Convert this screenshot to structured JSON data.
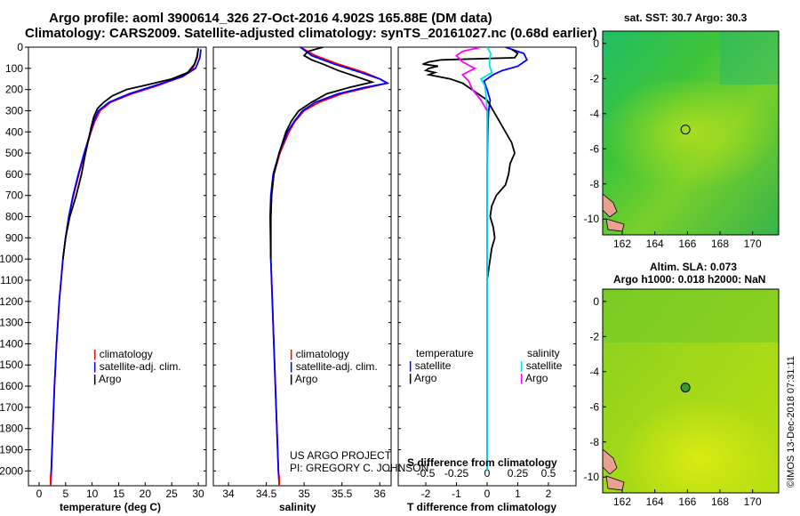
{
  "header": {
    "line1": "Argo profile: aoml 3900614_326 27-Oct-2016 4.902S 165.88E (DM data)",
    "line2": "Climatology: CARS2009. Satellite-adjusted climatology: synTS_20161027.nc (0.68d earlier)"
  },
  "colors": {
    "climatology": "#ff0000",
    "satellite": "#0000ff",
    "argo": "#000000",
    "sal_satellite": "#00e0e0",
    "sal_argo": "#ff00ff"
  },
  "depth_axis": {
    "ticks": [
      0,
      100,
      200,
      300,
      400,
      500,
      600,
      700,
      800,
      900,
      1000,
      1100,
      1200,
      1300,
      1400,
      1500,
      1600,
      1700,
      1800,
      1900,
      2000
    ]
  },
  "legend_t": {
    "climatology": "climatology",
    "satellite": "satellite-adj. clim.",
    "argo": "Argo"
  },
  "legend_s": {
    "climatology": "climatology",
    "satellite": "satellite-adj. clim.",
    "argo": "Argo"
  },
  "legend_diff": {
    "temperature": "temperature",
    "salinity": "salinity",
    "t_satellite": "satellite",
    "t_argo": "Argo",
    "s_satellite": "satellite",
    "s_argo": "Argo"
  },
  "credits": {
    "project": "US ARGO PROJECT",
    "pi": "PI: GREGORY C. JOHNSON"
  },
  "sst_map": {
    "title": "sat. SST: 30.7 Argo: 30.3"
  },
  "sla_map": {
    "title_line1": "Altim. SLA: 0.073",
    "title_line2": "Argo h1000: 0.018 h2000: NaN"
  },
  "stamp": "©IMOS 13-Dec-2018 07:31:11",
  "chart_data": [
    {
      "type": "line",
      "xlabel": "temperature (deg C)",
      "ylabel": "",
      "xlim": [
        -2,
        31.5
      ],
      "ylim": [
        2070,
        0
      ],
      "x_ticks": [
        0,
        5,
        10,
        15,
        20,
        25,
        30
      ],
      "series": [
        {
          "name": "climatology",
          "depth": [
            10,
            50,
            100,
            140,
            180,
            220,
            260,
            300,
            350,
            400,
            500,
            600,
            700,
            800,
            900,
            1000,
            1200,
            1400,
            1600,
            1800,
            2000,
            2060
          ],
          "values": [
            30.0,
            29.8,
            29.0,
            26.8,
            22.5,
            17.5,
            13.5,
            11.5,
            10.5,
            9.8,
            8.6,
            7.5,
            6.5,
            5.6,
            5.0,
            4.5,
            3.8,
            3.3,
            2.9,
            2.6,
            2.3,
            2.2
          ]
        },
        {
          "name": "satellite-adj. clim.",
          "depth": [
            10,
            50,
            100,
            140,
            180,
            220,
            260,
            300,
            350,
            400,
            500,
            600,
            700,
            800,
            900,
            1000,
            1200,
            1400,
            1600,
            1800,
            2000,
            2060
          ],
          "values": [
            30.5,
            30.3,
            29.5,
            27.0,
            22.0,
            17.0,
            13.2,
            11.2,
            10.3,
            9.7,
            8.5,
            7.4,
            6.4,
            5.6,
            5.0,
            4.5,
            3.8,
            3.3,
            2.9,
            2.6,
            2.3,
            2.2
          ]
        },
        {
          "name": "Argo",
          "depth": [
            5,
            40,
            80,
            120,
            150,
            180,
            200,
            230,
            260,
            290,
            330,
            380,
            450,
            520,
            600,
            700,
            800,
            900,
            1000
          ],
          "values": [
            30.0,
            29.8,
            29.3,
            28.0,
            25.0,
            20.0,
            16.5,
            13.8,
            12.2,
            11.0,
            10.3,
            9.8,
            9.2,
            8.6,
            8.0,
            7.0,
            5.8,
            5.0,
            4.5
          ]
        }
      ]
    },
    {
      "type": "line",
      "xlabel": "salinity",
      "ylabel": "",
      "xlim": [
        33.8,
        36.15
      ],
      "ylim": [
        2070,
        0
      ],
      "x_ticks": [
        34,
        34.5,
        35,
        35.5,
        36
      ],
      "series": [
        {
          "name": "climatology",
          "depth": [
            0,
            40,
            80,
            120,
            150,
            170,
            190,
            220,
            260,
            300,
            350,
            400,
            500,
            600,
            700,
            800,
            1000,
            1200,
            1400,
            1600,
            1800,
            2000,
            2060
          ],
          "values": [
            34.95,
            35.15,
            35.45,
            35.8,
            36.0,
            36.1,
            35.85,
            35.5,
            35.2,
            35.0,
            34.88,
            34.8,
            34.68,
            34.6,
            34.57,
            34.56,
            34.56,
            34.58,
            34.6,
            34.62,
            34.64,
            34.66,
            34.67
          ]
        },
        {
          "name": "satellite-adj. clim.",
          "depth": [
            0,
            40,
            80,
            120,
            150,
            170,
            190,
            220,
            260,
            300,
            350,
            400,
            500,
            600,
            700,
            800,
            1000,
            1200,
            1400,
            1600,
            1800,
            2000,
            2060
          ],
          "values": [
            34.95,
            35.1,
            35.4,
            35.75,
            36.0,
            36.1,
            35.8,
            35.45,
            35.15,
            34.98,
            34.87,
            34.78,
            34.67,
            34.59,
            34.56,
            34.55,
            34.56,
            34.58,
            34.6,
            34.62,
            34.64,
            34.66,
            34.67
          ]
        },
        {
          "name": "Argo",
          "depth": [
            0,
            20,
            40,
            60,
            80,
            110,
            140,
            165,
            190,
            220,
            260,
            300,
            350,
            400,
            500,
            600,
            700,
            800,
            900,
            1000
          ],
          "values": [
            35.25,
            35.05,
            35.0,
            35.1,
            35.25,
            35.45,
            35.7,
            35.9,
            35.6,
            35.3,
            35.1,
            34.93,
            34.83,
            34.76,
            34.67,
            34.6,
            34.57,
            34.56,
            34.56,
            34.56
          ]
        }
      ]
    },
    {
      "type": "line",
      "xlabel": "T difference from climatology",
      "x2label": "S difference from climatology",
      "ylabel": "",
      "xlim": [
        -2.9,
        2.9
      ],
      "ylim": [
        2070,
        0
      ],
      "x_ticks": [
        -2,
        -1,
        0,
        1,
        2
      ],
      "x2_ticks": [
        -0.5,
        -0.25,
        0,
        0.25,
        0.5
      ],
      "series": [
        {
          "name": "temperature satellite",
          "depth": [
            0,
            30,
            60,
            90,
            110,
            130,
            160,
            200,
            250,
            300,
            400,
            600,
            800,
            1000,
            1200,
            1400,
            1600,
            1800,
            2000
          ],
          "values": [
            0.6,
            1.2,
            1.3,
            1.0,
            0.5,
            0.2,
            -0.1,
            0.0,
            0.1,
            0.05,
            0.02,
            0.0,
            0.0,
            0.0,
            0.0,
            0.0,
            0.0,
            0.0,
            0.0
          ]
        },
        {
          "name": "temperature Argo",
          "depth": [
            10,
            30,
            50,
            60,
            70,
            80,
            90,
            100,
            110,
            120,
            130,
            150,
            170,
            200,
            250,
            300,
            350,
            400,
            450,
            500,
            550,
            600,
            650,
            700,
            750,
            800,
            850,
            900,
            950,
            1000,
            1050,
            1100
          ],
          "values": [
            0.8,
            1.0,
            0.9,
            -1.5,
            -1.9,
            -2.1,
            -1.6,
            -1.9,
            -2.0,
            -1.7,
            -1.9,
            -1.2,
            -0.8,
            -0.5,
            0.0,
            0.2,
            0.4,
            0.6,
            0.8,
            0.9,
            0.75,
            0.7,
            0.6,
            0.3,
            0.15,
            0.1,
            0.2,
            0.25,
            0.15,
            0.1,
            0.05,
            0.0
          ]
        },
        {
          "name": "salinity satellite",
          "depth": [
            0,
            30,
            60,
            90,
            120,
            150,
            180,
            220,
            300,
            400,
            600,
            1000,
            1500,
            2000
          ],
          "values": [
            0.0,
            0.03,
            0.02,
            0.02,
            0.04,
            -0.05,
            -0.02,
            -0.01,
            0.0,
            0.0,
            0.0,
            0.0,
            0.0,
            0.0
          ]
        },
        {
          "name": "salinity Argo",
          "depth": [
            0,
            20,
            40,
            70,
            100,
            130,
            160,
            200,
            250,
            300
          ],
          "values": [
            -0.05,
            -0.2,
            -0.25,
            -0.2,
            -0.1,
            -0.2,
            -0.15,
            -0.12,
            -0.05,
            0.0
          ]
        }
      ]
    }
  ],
  "maps": {
    "lon_ticks": [
      162,
      164,
      166,
      168,
      170
    ],
    "lat_ticks": [
      0,
      -2,
      -4,
      -6,
      -8,
      -10
    ],
    "lon_range": [
      160.8,
      171.6
    ],
    "lat_range": [
      -10.9,
      0.7
    ],
    "argo_position": {
      "lon": 165.88,
      "lat": -4.902
    }
  }
}
